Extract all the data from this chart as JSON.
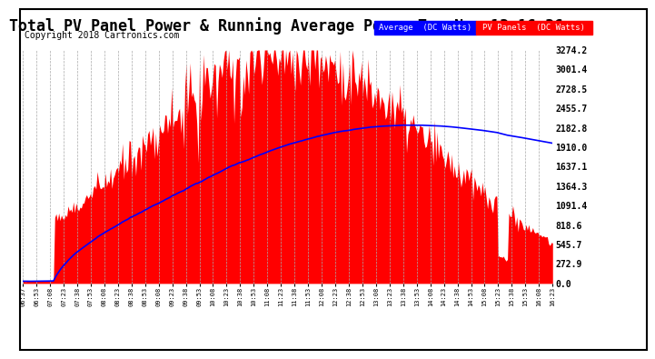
{
  "title": "Total PV Panel Power & Running Average Power Tue Nov 13 16:36",
  "copyright": "Copyright 2018 Cartronics.com",
  "legend_avg": "Average  (DC Watts)",
  "legend_pv": "PV Panels  (DC Watts)",
  "ylabel_values": [
    0.0,
    272.9,
    545.7,
    818.6,
    1091.4,
    1364.3,
    1637.1,
    1910.0,
    2182.8,
    2455.7,
    2728.5,
    3001.4,
    3274.2
  ],
  "x_labels": [
    "06:37",
    "06:53",
    "07:08",
    "07:23",
    "07:38",
    "07:53",
    "08:08",
    "08:23",
    "08:38",
    "08:53",
    "09:08",
    "09:23",
    "09:38",
    "09:53",
    "10:08",
    "10:23",
    "10:38",
    "10:53",
    "11:08",
    "11:23",
    "11:38",
    "11:53",
    "12:08",
    "12:23",
    "12:38",
    "12:53",
    "13:08",
    "13:23",
    "13:38",
    "13:53",
    "14:08",
    "14:23",
    "14:38",
    "14:53",
    "15:08",
    "15:23",
    "15:38",
    "15:53",
    "16:08",
    "16:23"
  ],
  "background_color": "#ffffff",
  "plot_bg_color": "#ffffff",
  "grid_color": "#aaaaaa",
  "fill_color": "#ff0000",
  "avg_line_color": "#0000ff",
  "title_fontsize": 12,
  "copyright_fontsize": 7,
  "ymax": 3274.2,
  "ymin": 0.0,
  "n_points": 400
}
